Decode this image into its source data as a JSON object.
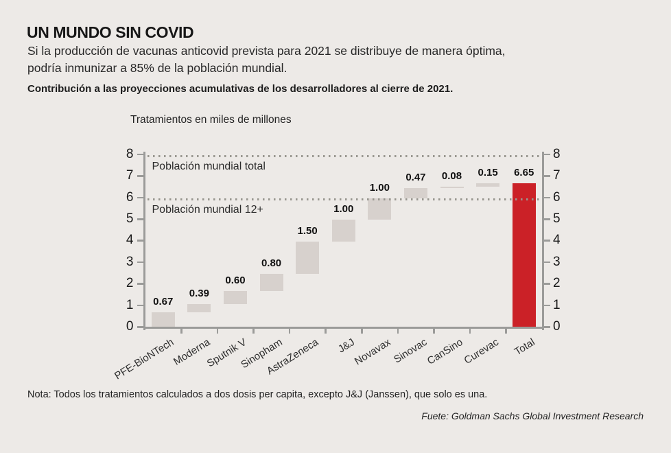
{
  "page": {
    "background": "#edeae7",
    "accent_red": "#cb2127",
    "bar_gray": "#d7d1cd",
    "axis_gray": "#9b9b99"
  },
  "header": {
    "title": "UN MUNDO SIN COVID",
    "subtitle_lines": [
      "Si la producción de vacunas anticovid prevista para 2021 se distribuye de manera óptima,",
      "podría inmunizar a 85% de la población mundial."
    ],
    "lede": "Contribución a las proyecciones acumulativas de los desarrolladores al cierre de 2021."
  },
  "chart_data": {
    "type": "bar",
    "subtype": "waterfall",
    "axis_title": "Tratamientos en miles de millones",
    "ylim": [
      0,
      8
    ],
    "yticks": [
      0,
      1,
      2,
      3,
      4,
      5,
      6,
      7,
      8
    ],
    "grid": false,
    "legend": false,
    "dual_y_axis": true,
    "categories": [
      "PFE-BioNTech",
      "Moderna",
      "Sputnik V",
      "Sinopham",
      "AstraZeneca",
      "J&J",
      "Novavax",
      "Sinovac",
      "CanSino",
      "Curevac",
      "Total"
    ],
    "segments": [
      {
        "category": "PFE-BioNTech",
        "label": "0.67",
        "value": 0.67,
        "start": 0,
        "end": 0.67,
        "role": "step"
      },
      {
        "category": "Moderna",
        "label": "0.39",
        "value": 0.39,
        "start": 0.67,
        "end": 1.06,
        "role": "step"
      },
      {
        "category": "Sputnik V",
        "label": "0.60",
        "value": 0.6,
        "start": 1.06,
        "end": 1.66,
        "role": "step"
      },
      {
        "category": "Sinopham",
        "label": "0.80",
        "value": 0.8,
        "start": 1.66,
        "end": 2.46,
        "role": "step"
      },
      {
        "category": "AstraZeneca",
        "label": "1.50",
        "value": 1.5,
        "start": 2.46,
        "end": 3.96,
        "role": "step"
      },
      {
        "category": "J&J",
        "label": "1.00",
        "value": 1.0,
        "start": 3.96,
        "end": 4.96,
        "role": "step"
      },
      {
        "category": "Novavax",
        "label": "1.00",
        "value": 1.0,
        "start": 4.96,
        "end": 5.96,
        "role": "step"
      },
      {
        "category": "Sinovac",
        "label": "0.47",
        "value": 0.47,
        "start": 5.96,
        "end": 6.43,
        "role": "step"
      },
      {
        "category": "CanSino",
        "label": "0.08",
        "value": 0.08,
        "start": 6.43,
        "end": 6.51,
        "role": "step"
      },
      {
        "category": "Curevac",
        "label": "0.15",
        "value": 0.15,
        "start": 6.51,
        "end": 6.66,
        "role": "step"
      },
      {
        "category": "Total",
        "label": "6.65",
        "value": 6.65,
        "start": 0,
        "end": 6.65,
        "role": "total"
      }
    ],
    "reference_lines": [
      {
        "label": "Población mundial total",
        "value": 7.95
      },
      {
        "label": "Población mundial 12+",
        "value": 5.97
      }
    ]
  },
  "footer": {
    "note": "Nota: Todos los tratamientos calculados a dos dosis per capita, excepto J&J (Janssen), que solo es una.",
    "source": "Fuete: Goldman Sachs Global Investment Research"
  }
}
